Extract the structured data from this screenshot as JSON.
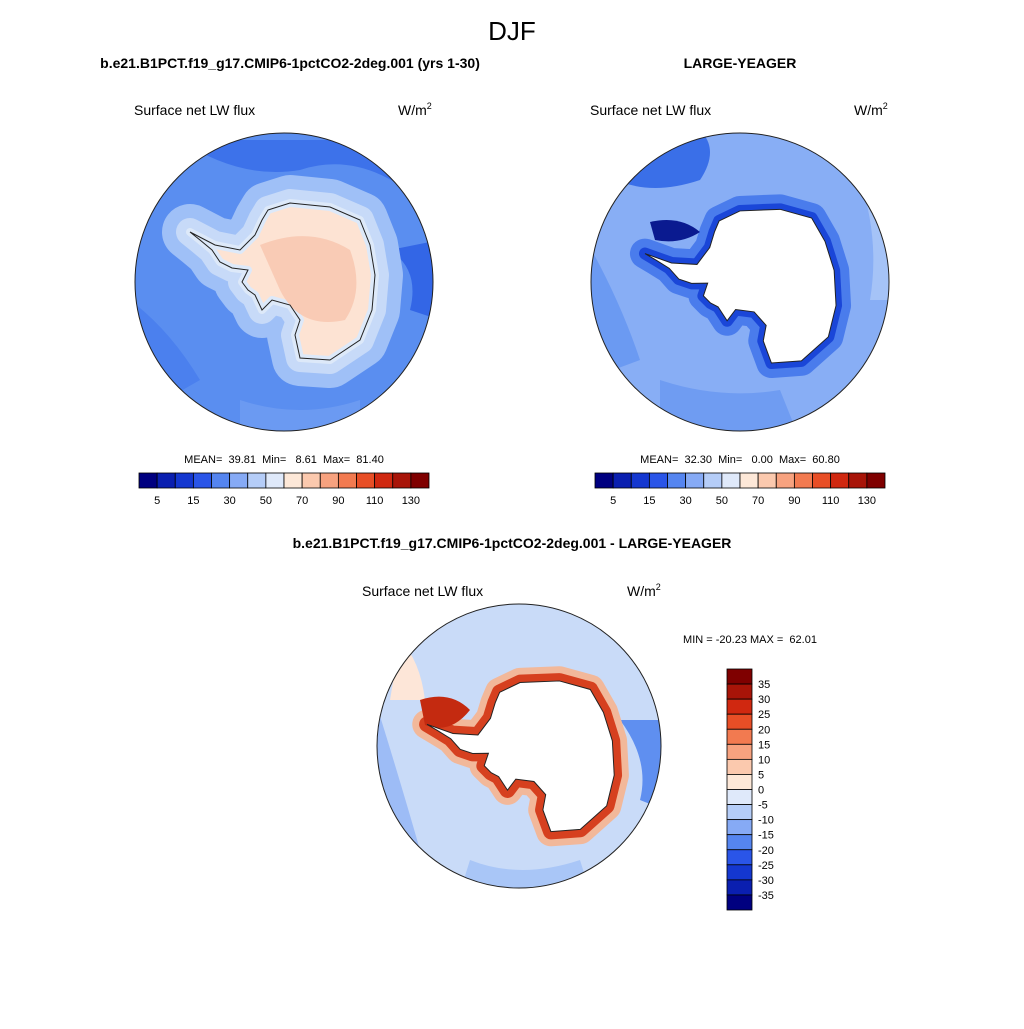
{
  "header": {
    "title": "DJF"
  },
  "panels": [
    {
      "title": "b.e21.B1PCT.f19_g17.CMIP6-1pctCO2-2deg.001 (yrs 1-30)",
      "variable": "Surface net LW flux",
      "units": "W/m",
      "units_sup": "2",
      "stats": "MEAN=  39.81  Min=   8.61  Max=  81.40",
      "colorbar_labels": [
        "5",
        "15",
        "30",
        "50",
        "70",
        "90",
        "110",
        "130"
      ]
    },
    {
      "title": "LARGE-YEAGER",
      "variable": "Surface net LW flux",
      "units": "W/m",
      "units_sup": "2",
      "stats": "MEAN=  32.30  Min=   0.00  Max=  60.80",
      "colorbar_labels": [
        "5",
        "15",
        "30",
        "50",
        "70",
        "90",
        "110",
        "130"
      ]
    },
    {
      "title": "b.e21.B1PCT.f19_g17.CMIP6-1pctCO2-2deg.001 - LARGE-YEAGER",
      "variable": "Surface net LW flux",
      "units": "W/m",
      "units_sup": "2",
      "stats": "MIN = -20.23 MAX =  62.01",
      "colorbar_labels": [
        "35",
        "30",
        "25",
        "20",
        "15",
        "10",
        "5",
        "0",
        "-5",
        "-10",
        "-15",
        "-20",
        "-25",
        "-30",
        "-35"
      ]
    }
  ]
}
